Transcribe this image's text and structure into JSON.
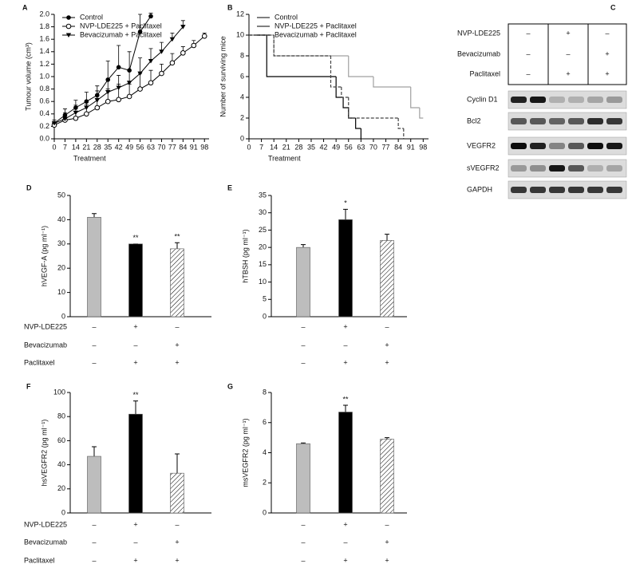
{
  "chart_data": [
    {
      "type": "line",
      "panel_label": "A",
      "y_label": "Tumour volume (cm³)",
      "x_label": "Treatment",
      "xlim": [
        0,
        101
      ],
      "xticks": [
        0,
        7,
        14,
        21,
        28,
        35,
        42,
        49,
        56,
        63,
        70,
        77,
        84,
        91,
        98
      ],
      "ylim": [
        0,
        2
      ],
      "yticks": [
        {
          "value": 0,
          "label": "0.0"
        },
        0.2,
        0.4,
        0.6,
        0.8,
        {
          "value": 1,
          "label": "1.0"
        },
        1.2,
        1.4,
        1.6,
        1.8,
        {
          "value": 2,
          "label": "2.0"
        }
      ],
      "series": [
        {
          "name": "Control",
          "color": "#000000",
          "marker": "filled-circle",
          "x": [
            0,
            7,
            14,
            21,
            28,
            35,
            42,
            49,
            56,
            63
          ],
          "values": [
            0.25,
            0.38,
            0.5,
            0.6,
            0.7,
            0.95,
            1.15,
            1.1,
            1.72,
            1.97
          ],
          "errors": [
            0.05,
            0.1,
            0.12,
            0.15,
            0.15,
            0.3,
            0.35,
            0.3,
            0.28,
            0.05
          ]
        },
        {
          "name": "NVP-LDE225 + Paclitaxel",
          "color": "#000000",
          "marker": "open-circle",
          "x": [
            0,
            7,
            14,
            21,
            28,
            35,
            42,
            49,
            56,
            63,
            70,
            77,
            84,
            91,
            98
          ],
          "values": [
            0.22,
            0.3,
            0.33,
            0.4,
            0.5,
            0.6,
            0.63,
            0.68,
            0.8,
            0.9,
            1.05,
            1.22,
            1.38,
            1.5,
            1.65
          ],
          "errors": [
            0.05,
            0.08,
            0.1,
            0.15,
            0.15,
            0.2,
            0.25,
            0.2,
            0.25,
            0.2,
            0.15,
            0.15,
            0.1,
            0.08,
            0.05
          ]
        },
        {
          "name": "Bevacizumab + Paclitaxel",
          "color": "#000000",
          "marker": "triangle-down",
          "x": [
            0,
            7,
            14,
            21,
            28,
            35,
            42,
            49,
            56,
            63,
            70,
            77,
            84
          ],
          "values": [
            0.25,
            0.32,
            0.42,
            0.5,
            0.62,
            0.75,
            0.82,
            0.9,
            1.05,
            1.25,
            1.4,
            1.6,
            1.8
          ],
          "errors": [
            0.05,
            0.1,
            0.12,
            0.1,
            0.15,
            0.2,
            0.2,
            0.2,
            0.25,
            0.2,
            0.15,
            0.1,
            0.1
          ]
        }
      ]
    },
    {
      "type": "step",
      "panel_label": "B",
      "y_label": "Number of surviving mice",
      "x_label": "Treatment",
      "xlim": [
        0,
        101
      ],
      "xticks": [
        0,
        7,
        14,
        21,
        28,
        35,
        42,
        49,
        56,
        63,
        70,
        77,
        84,
        91,
        98
      ],
      "ylim": [
        0,
        12
      ],
      "yticks": [
        0,
        2,
        4,
        6,
        8,
        10,
        12
      ],
      "series": [
        {
          "name": "Control",
          "color": "#000000",
          "dash": false,
          "x": [
            0,
            10,
            49,
            53,
            56,
            60,
            63
          ],
          "values": [
            10,
            6,
            4,
            3,
            2,
            1,
            0
          ]
        },
        {
          "name": "NVP-LDE225 + Paclitaxel",
          "color": "#a0a0a0",
          "dash": false,
          "x": [
            0,
            14,
            56,
            70,
            91,
            96,
            98
          ],
          "values": [
            10,
            8,
            6,
            5,
            3,
            2,
            2
          ]
        },
        {
          "name": "Bevacizumab + Paclitaxel",
          "color": "#444444",
          "dash": true,
          "x": [
            0,
            14,
            46,
            52,
            56,
            84,
            87
          ],
          "values": [
            10,
            8,
            5,
            4,
            2,
            1,
            0
          ]
        }
      ]
    },
    {
      "type": "bar",
      "panel_label": "D",
      "y_label": "hVEGF-A (pg ml⁻¹)",
      "ylim": [
        0,
        50
      ],
      "yticks": [
        0,
        10,
        20,
        30,
        40,
        50
      ],
      "values": [
        41,
        30,
        28
      ],
      "errors": [
        1.5,
        0,
        2.5
      ],
      "annotations": [
        null,
        "**",
        "**"
      ],
      "fills": [
        "#bdbdbd",
        "#000000",
        "hatched"
      ],
      "conditions": [
        {
          "label": "NVP-LDE225",
          "signs": [
            "–",
            "+",
            "–"
          ]
        },
        {
          "label": "Bevacizumab",
          "signs": [
            "–",
            "–",
            "+"
          ]
        },
        {
          "label": "Paclitaxel",
          "signs": [
            "–",
            "+",
            "+"
          ]
        }
      ]
    },
    {
      "type": "bar",
      "panel_label": "E",
      "y_label": "hTBSH (pg ml⁻¹)",
      "ylim": [
        0,
        35
      ],
      "yticks": [
        0,
        5,
        10,
        15,
        20,
        25,
        30,
        35
      ],
      "values": [
        20,
        28,
        22
      ],
      "errors": [
        0.8,
        3,
        1.8
      ],
      "annotations": [
        null,
        "*",
        null
      ],
      "fills": [
        "#bdbdbd",
        "#000000",
        "hatched"
      ],
      "conditions": [
        {
          "signs": [
            "–",
            "+",
            "–"
          ]
        },
        {
          "signs": [
            "–",
            "–",
            "+"
          ]
        },
        {
          "signs": [
            "–",
            "+",
            "+"
          ]
        }
      ]
    },
    {
      "type": "bar",
      "panel_label": "F",
      "y_label": "hsVEGFR2 (pg ml⁻¹)",
      "ylim": [
        0,
        100
      ],
      "yticks": [
        0,
        20,
        40,
        60,
        80,
        100
      ],
      "values": [
        47,
        82,
        33
      ],
      "errors": [
        8,
        11,
        16
      ],
      "annotations": [
        null,
        "**",
        null
      ],
      "fills": [
        "#bdbdbd",
        "#000000",
        "hatched"
      ],
      "conditions": [
        {
          "label": "NVP-LDE225",
          "signs": [
            "–",
            "+",
            "–"
          ]
        },
        {
          "label": "Bevacizumab",
          "signs": [
            "–",
            "–",
            "+"
          ]
        },
        {
          "label": "Paclitaxel",
          "signs": [
            "–",
            "+",
            "+"
          ]
        }
      ]
    },
    {
      "type": "bar",
      "panel_label": "G",
      "y_label": "msVEGFR2 (pg ml⁻¹)",
      "ylim": [
        0,
        8
      ],
      "yticks": [
        0,
        2,
        4,
        6,
        8
      ],
      "values": [
        4.6,
        6.7,
        4.9
      ],
      "errors": [
        0.05,
        0.45,
        0.1
      ],
      "annotations": [
        null,
        "**",
        null
      ],
      "fills": [
        "#bdbdbd",
        "#000000",
        "hatched"
      ],
      "conditions": [
        {
          "signs": [
            "–",
            "+",
            "–"
          ]
        },
        {
          "signs": [
            "–",
            "–",
            "+"
          ]
        },
        {
          "signs": [
            "–",
            "+",
            "+"
          ]
        }
      ]
    }
  ],
  "blot": {
    "panel_label": "C",
    "treatments": [
      {
        "label": "NVP-LDE225",
        "signs": [
          "–",
          "+",
          "–"
        ]
      },
      {
        "label": "Bevacizumab",
        "signs": [
          "–",
          "–",
          "+"
        ]
      },
      {
        "label": "Paclitaxel",
        "signs": [
          "–",
          "+",
          "+"
        ]
      }
    ],
    "proteins": [
      "Cyclin D1",
      "Bcl2",
      "VEGFR2",
      "sVEGFR2",
      "GAPDH"
    ]
  }
}
